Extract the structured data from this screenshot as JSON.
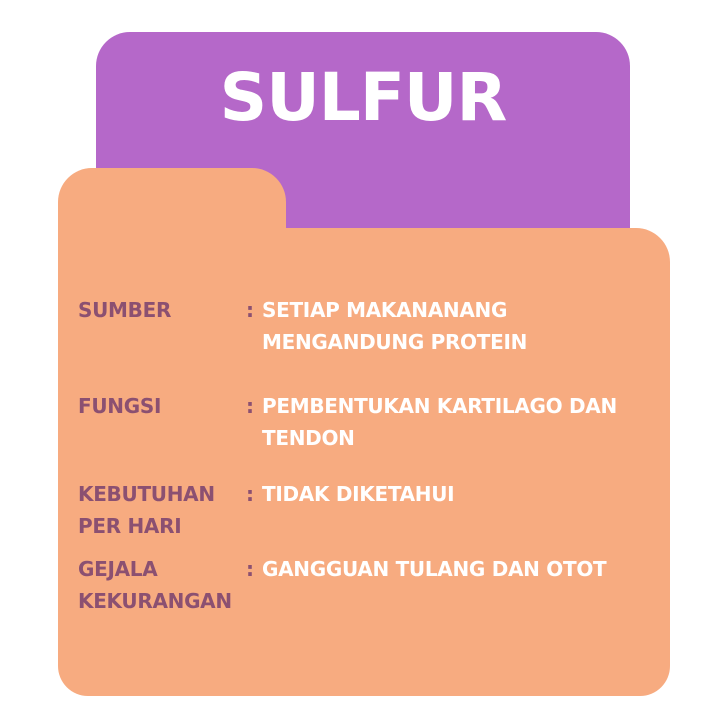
{
  "title": "SULFUR",
  "colors": {
    "purple": "#b568c9",
    "peach": "#f7ab80",
    "label": "#8b5071",
    "value": "#ffffff"
  },
  "rows": [
    {
      "label_lines": [
        "SUMBER"
      ],
      "colon": ":",
      "value_lines": [
        "SETIAP MAKANANANG",
        "MENGANDUNG PROTEIN"
      ]
    },
    {
      "label_lines": [
        "FUNGSI"
      ],
      "colon": ":",
      "value_lines": [
        "PEMBENTUKAN KARTILAGO DAN",
        "TENDON"
      ]
    },
    {
      "label_lines": [
        "KEBUTUHAN",
        "PER HARI"
      ],
      "colon": ":",
      "value_lines": [
        "TIDAK DIKETAHUI"
      ]
    },
    {
      "label_lines": [
        "GEJALA",
        "KEKURANGAN"
      ],
      "colon": ":",
      "value_lines": [
        "GANGGUAN TULANG DAN OTOT"
      ]
    }
  ]
}
